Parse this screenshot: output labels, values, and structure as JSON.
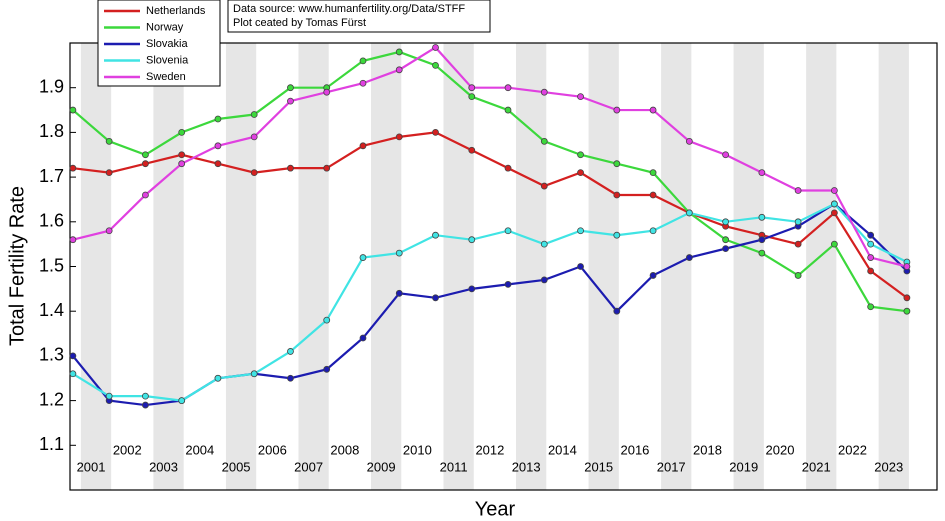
{
  "chart_data": {
    "type": "line",
    "xlabel": "Year",
    "ylabel": "Total Fertility Rate",
    "annotations": [
      "Data source: www.humanfertility.org/Data/STFF",
      "Plot ceated by Tomas Fürst"
    ],
    "x": [
      2000,
      2001,
      2002,
      2003,
      2004,
      2005,
      2006,
      2007,
      2008,
      2009,
      2010,
      2011,
      2012,
      2013,
      2014,
      2015,
      2016,
      2017,
      2018,
      2019,
      2020,
      2021,
      2022,
      2023
    ],
    "xlim": [
      1999.92,
      2023.83
    ],
    "xticks": [
      2001,
      2002,
      2003,
      2004,
      2005,
      2006,
      2007,
      2008,
      2009,
      2010,
      2011,
      2012,
      2013,
      2014,
      2015,
      2016,
      2017,
      2018,
      2019,
      2020,
      2021,
      2022,
      2023
    ],
    "ylim": [
      1.0,
      2.0
    ],
    "yticks": [
      1.1,
      1.2,
      1.3,
      1.4,
      1.5,
      1.6,
      1.7,
      1.8,
      1.9
    ],
    "legend": "upper left",
    "series": [
      {
        "name": "Netherlands",
        "color": "#d42020",
        "values": [
          1.72,
          1.71,
          1.73,
          1.75,
          1.73,
          1.71,
          1.72,
          1.72,
          1.77,
          1.79,
          1.8,
          1.76,
          1.72,
          1.68,
          1.71,
          1.66,
          1.66,
          1.62,
          1.59,
          1.57,
          1.55,
          1.62,
          1.49,
          1.43
        ]
      },
      {
        "name": "Norway",
        "color": "#3cd83c",
        "values": [
          1.85,
          1.78,
          1.75,
          1.8,
          1.83,
          1.84,
          1.9,
          1.9,
          1.96,
          1.98,
          1.95,
          1.88,
          1.85,
          1.78,
          1.75,
          1.73,
          1.71,
          1.62,
          1.56,
          1.53,
          1.48,
          1.55,
          1.41,
          1.4
        ]
      },
      {
        "name": "Slovakia",
        "color": "#1c1cb0",
        "values": [
          1.3,
          1.2,
          1.19,
          1.2,
          1.25,
          1.26,
          1.25,
          1.27,
          1.34,
          1.44,
          1.43,
          1.45,
          1.46,
          1.47,
          1.5,
          1.4,
          1.48,
          1.52,
          1.54,
          1.56,
          1.59,
          1.64,
          1.57,
          1.49
        ]
      },
      {
        "name": "Slovenia",
        "color": "#40e4e4",
        "values": [
          1.26,
          1.21,
          1.21,
          1.2,
          1.25,
          1.26,
          1.31,
          1.38,
          1.52,
          1.53,
          1.57,
          1.56,
          1.58,
          1.55,
          1.58,
          1.57,
          1.58,
          1.62,
          1.6,
          1.61,
          1.6,
          1.64,
          1.55,
          1.51
        ]
      },
      {
        "name": "Sweden",
        "color": "#e040e0",
        "values": [
          1.56,
          1.58,
          1.66,
          1.73,
          1.77,
          1.79,
          1.87,
          1.89,
          1.91,
          1.94,
          1.99,
          1.9,
          1.9,
          1.89,
          1.88,
          1.85,
          1.85,
          1.78,
          1.75,
          1.71,
          1.67,
          1.67,
          1.52,
          1.5
        ]
      }
    ]
  }
}
